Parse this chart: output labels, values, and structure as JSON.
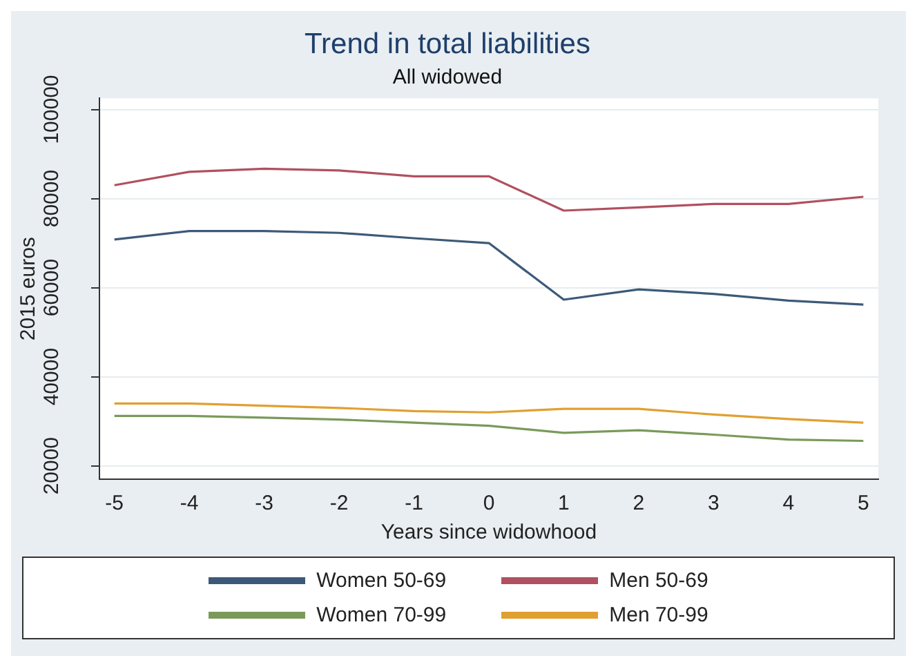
{
  "chart_data": {
    "type": "line",
    "title": "Trend in total liabilities",
    "subtitle": "All widowed",
    "xlabel": "Years since widowhood",
    "ylabel": "2015 euros",
    "x": [
      -5,
      -4,
      -3,
      -2,
      -1,
      0,
      1,
      2,
      3,
      4,
      5
    ],
    "xlim": [
      -5.2,
      5.2
    ],
    "xticks": [
      -5,
      -4,
      -3,
      -2,
      -1,
      0,
      1,
      2,
      3,
      4,
      5
    ],
    "ylim": [
      17000,
      102500
    ],
    "yticks": [
      20000,
      40000,
      60000,
      80000,
      100000
    ],
    "grid": "y",
    "legend": "bottom",
    "marker": "none",
    "line_style": "solid",
    "series": [
      {
        "name": "Women 50-69",
        "color": "#3c5a78",
        "values": [
          70800,
          72700,
          72700,
          72300,
          71100,
          70000,
          57300,
          59600,
          58600,
          57100,
          56200
        ]
      },
      {
        "name": "Men 50-69",
        "color": "#b05060",
        "values": [
          83000,
          86000,
          86700,
          86300,
          85000,
          85000,
          77300,
          78000,
          78800,
          78800,
          80400
        ]
      },
      {
        "name": "Women 70-99",
        "color": "#7a9a5a",
        "values": [
          31200,
          31200,
          30800,
          30400,
          29700,
          29000,
          27400,
          28000,
          27000,
          25900,
          25600
        ]
      },
      {
        "name": "Men 70-99",
        "color": "#e0a030",
        "values": [
          34000,
          34000,
          33500,
          33000,
          32300,
          32000,
          32800,
          32800,
          31500,
          30500,
          29700
        ]
      }
    ]
  }
}
